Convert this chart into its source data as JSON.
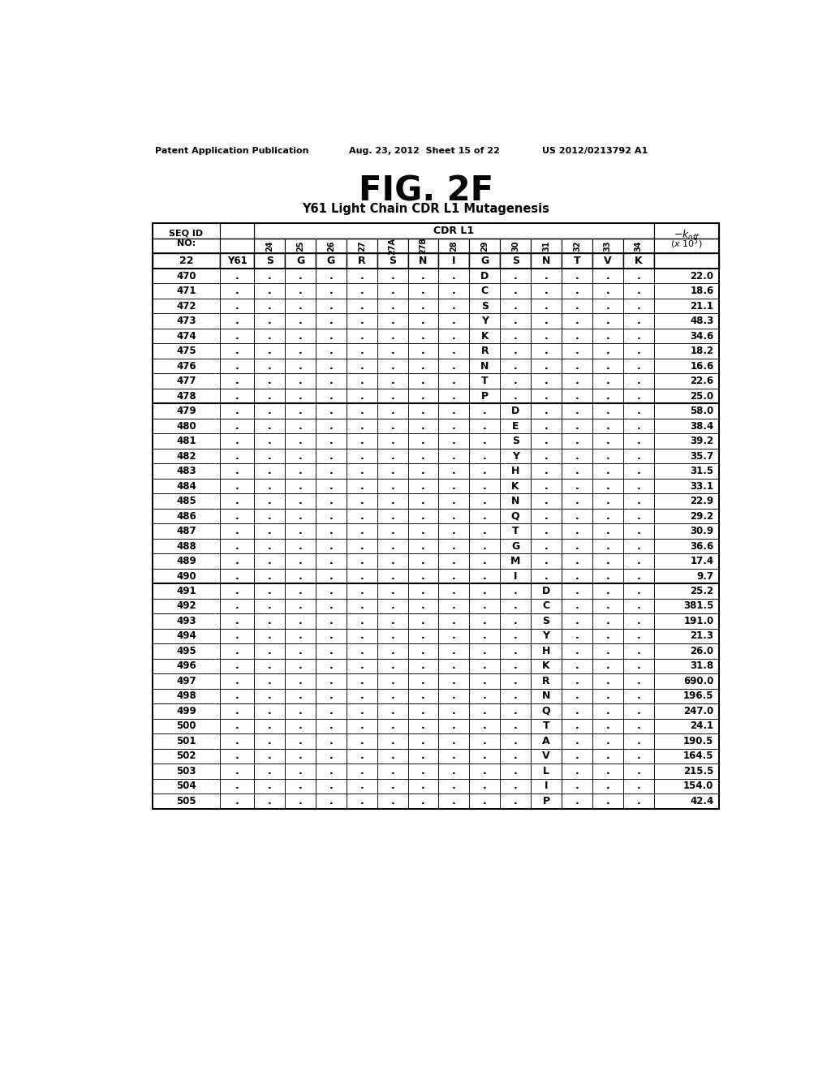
{
  "title": "FIG. 2F",
  "subtitle": "Y61 Light Chain CDR L1 Mutagenesis",
  "header_line1": "Patent Application Publication",
  "header_line2": "Aug. 23, 2012  Sheet 15 of 22",
  "header_line3": "US 2012/0213792 A1",
  "cdr_label": "CDR L1",
  "col_headers": [
    "24",
    "25",
    "26",
    "27",
    "27A",
    "27B",
    "28",
    "29",
    "30",
    "31",
    "32",
    "33",
    "34"
  ],
  "ref_row": {
    "seq": "22",
    "label": "Y61",
    "residues": [
      "S",
      "G",
      "G",
      "R",
      "S",
      "N",
      "I",
      "G",
      "S",
      "N",
      "T",
      "V",
      "K"
    ]
  },
  "rows": [
    {
      "seq": "470",
      "col": 7,
      "residue": "D",
      "koff": "22.0"
    },
    {
      "seq": "471",
      "col": 7,
      "residue": "C",
      "koff": "18.6"
    },
    {
      "seq": "472",
      "col": 7,
      "residue": "S",
      "koff": "21.1"
    },
    {
      "seq": "473",
      "col": 7,
      "residue": "Y",
      "koff": "48.3"
    },
    {
      "seq": "474",
      "col": 7,
      "residue": "K",
      "koff": "34.6"
    },
    {
      "seq": "475",
      "col": 7,
      "residue": "R",
      "koff": "18.2"
    },
    {
      "seq": "476",
      "col": 7,
      "residue": "N",
      "koff": "16.6"
    },
    {
      "seq": "477",
      "col": 7,
      "residue": "T",
      "koff": "22.6"
    },
    {
      "seq": "478",
      "col": 7,
      "residue": "P",
      "koff": "25.0"
    },
    {
      "seq": "479",
      "col": 8,
      "residue": "D",
      "koff": "58.0"
    },
    {
      "seq": "480",
      "col": 8,
      "residue": "E",
      "koff": "38.4"
    },
    {
      "seq": "481",
      "col": 8,
      "residue": "S",
      "koff": "39.2"
    },
    {
      "seq": "482",
      "col": 8,
      "residue": "Y",
      "koff": "35.7"
    },
    {
      "seq": "483",
      "col": 8,
      "residue": "H",
      "koff": "31.5"
    },
    {
      "seq": "484",
      "col": 8,
      "residue": "K",
      "koff": "33.1"
    },
    {
      "seq": "485",
      "col": 8,
      "residue": "N",
      "koff": "22.9"
    },
    {
      "seq": "486",
      "col": 8,
      "residue": "Q",
      "koff": "29.2"
    },
    {
      "seq": "487",
      "col": 8,
      "residue": "T",
      "koff": "30.9"
    },
    {
      "seq": "488",
      "col": 8,
      "residue": "G",
      "koff": "36.6"
    },
    {
      "seq": "489",
      "col": 8,
      "residue": "M",
      "koff": "17.4"
    },
    {
      "seq": "490",
      "col": 8,
      "residue": "I",
      "koff": "9.7"
    },
    {
      "seq": "491",
      "col": 9,
      "residue": "D",
      "koff": "25.2"
    },
    {
      "seq": "492",
      "col": 9,
      "residue": "C",
      "koff": "381.5"
    },
    {
      "seq": "493",
      "col": 9,
      "residue": "S",
      "koff": "191.0"
    },
    {
      "seq": "494",
      "col": 9,
      "residue": "Y",
      "koff": "21.3"
    },
    {
      "seq": "495",
      "col": 9,
      "residue": "H",
      "koff": "26.0"
    },
    {
      "seq": "496",
      "col": 9,
      "residue": "K",
      "koff": "31.8"
    },
    {
      "seq": "497",
      "col": 9,
      "residue": "R",
      "koff": "690.0"
    },
    {
      "seq": "498",
      "col": 9,
      "residue": "N",
      "koff": "196.5"
    },
    {
      "seq": "499",
      "col": 9,
      "residue": "Q",
      "koff": "247.0"
    },
    {
      "seq": "500",
      "col": 9,
      "residue": "T",
      "koff": "24.1"
    },
    {
      "seq": "501",
      "col": 9,
      "residue": "A",
      "koff": "190.5"
    },
    {
      "seq": "502",
      "col": 9,
      "residue": "V",
      "koff": "164.5"
    },
    {
      "seq": "503",
      "col": 9,
      "residue": "L",
      "koff": "215.5"
    },
    {
      "seq": "504",
      "col": 9,
      "residue": "I",
      "koff": "154.0"
    },
    {
      "seq": "505",
      "col": 9,
      "residue": "P",
      "koff": "42.4"
    }
  ],
  "bg_color": "#ffffff",
  "text_color": "#000000"
}
